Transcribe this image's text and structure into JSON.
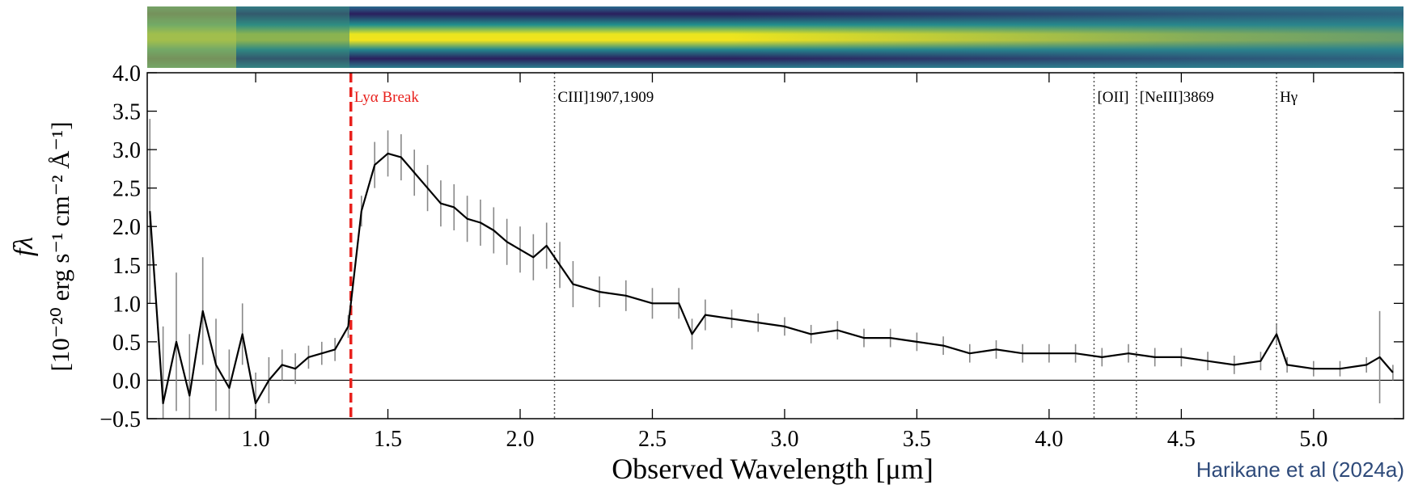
{
  "chart_data": {
    "type": "line",
    "y_label_symbol": "fλ",
    "y_label": "[10⁻²⁰ erg s⁻¹ cm⁻² Å⁻¹]",
    "x_label": "Observed Wavelength [μm]",
    "credit": "Harikane et al (2024a)",
    "xlim": [
      0.59,
      5.34
    ],
    "ylim": [
      -0.5,
      4.0
    ],
    "xticks": [
      {
        "value": 1.0,
        "label": "1.0"
      },
      1.5,
      {
        "value": 2.0,
        "label": "2.0"
      },
      2.5,
      {
        "value": 3.0,
        "label": "3.0"
      },
      3.5,
      {
        "value": 4.0,
        "label": "4.0"
      },
      4.5,
      {
        "value": 5.0,
        "label": "5.0"
      }
    ],
    "yticks": [
      {
        "value": -0.5,
        "label": "−0.5"
      },
      {
        "value": 0,
        "label": "0.0"
      },
      0.5,
      {
        "value": 1,
        "label": "1.0"
      },
      1.5,
      {
        "value": 2,
        "label": "2.0"
      },
      2.5,
      {
        "value": 3,
        "label": "3.0"
      },
      3.5,
      {
        "value": 4,
        "label": "4.0"
      }
    ],
    "x": [
      0.6,
      0.65,
      0.7,
      0.75,
      0.8,
      0.85,
      0.9,
      0.95,
      1.0,
      1.05,
      1.1,
      1.15,
      1.2,
      1.25,
      1.3,
      1.35,
      1.4,
      1.45,
      1.5,
      1.55,
      1.6,
      1.65,
      1.7,
      1.75,
      1.8,
      1.85,
      1.9,
      1.95,
      2.0,
      2.05,
      2.1,
      2.15,
      2.2,
      2.3,
      2.4,
      2.5,
      2.6,
      2.65,
      2.7,
      2.8,
      2.9,
      3.0,
      3.1,
      3.2,
      3.3,
      3.4,
      3.5,
      3.6,
      3.7,
      3.8,
      3.9,
      4.0,
      4.1,
      4.2,
      4.3,
      4.4,
      4.5,
      4.6,
      4.7,
      4.8,
      4.86,
      4.9,
      5.0,
      5.1,
      5.2,
      5.25,
      5.3
    ],
    "series": [
      {
        "name": "spectrum",
        "color": "#000000",
        "error_color": "#888888",
        "values": [
          2.2,
          -0.3,
          0.5,
          -0.2,
          0.9,
          0.2,
          -0.1,
          0.6,
          -0.3,
          0.0,
          0.2,
          0.15,
          0.3,
          0.35,
          0.4,
          0.7,
          2.2,
          2.8,
          2.95,
          2.9,
          2.7,
          2.5,
          2.3,
          2.25,
          2.1,
          2.05,
          1.95,
          1.8,
          1.7,
          1.6,
          1.75,
          1.5,
          1.25,
          1.15,
          1.1,
          1.0,
          1.0,
          0.6,
          0.85,
          0.8,
          0.75,
          0.7,
          0.6,
          0.65,
          0.55,
          0.55,
          0.5,
          0.45,
          0.35,
          0.4,
          0.35,
          0.35,
          0.35,
          0.3,
          0.35,
          0.3,
          0.3,
          0.25,
          0.2,
          0.25,
          0.6,
          0.2,
          0.15,
          0.15,
          0.2,
          0.3,
          0.1
        ],
        "errors": [
          1.2,
          1.0,
          0.9,
          0.8,
          0.7,
          0.6,
          0.5,
          0.4,
          0.4,
          0.3,
          0.2,
          0.2,
          0.15,
          0.15,
          0.15,
          0.15,
          0.2,
          0.3,
          0.3,
          0.3,
          0.3,
          0.3,
          0.3,
          0.3,
          0.3,
          0.3,
          0.3,
          0.3,
          0.3,
          0.3,
          0.3,
          0.3,
          0.3,
          0.2,
          0.2,
          0.2,
          0.2,
          0.2,
          0.2,
          0.12,
          0.12,
          0.12,
          0.12,
          0.12,
          0.12,
          0.12,
          0.12,
          0.12,
          0.12,
          0.12,
          0.12,
          0.12,
          0.12,
          0.12,
          0.12,
          0.12,
          0.12,
          0.12,
          0.12,
          0.12,
          0.12,
          0.1,
          0.1,
          0.1,
          0.1,
          0.6,
          0.1
        ]
      }
    ],
    "lines": [
      {
        "x": 1.36,
        "label": "Lyα Break",
        "color": "#e8201c",
        "style": "dashed"
      },
      {
        "x": 2.13,
        "label": "CIII]1907,1909",
        "color": "#555555",
        "style": "dotted"
      },
      {
        "x": 4.17,
        "label": "[OII]",
        "color": "#555555",
        "style": "dotted"
      },
      {
        "x": 4.33,
        "label": "[NeIII]3869",
        "color": "#555555",
        "style": "dotted"
      },
      {
        "x": 4.86,
        "label": "Hγ",
        "color": "#555555",
        "style": "dotted"
      }
    ]
  }
}
